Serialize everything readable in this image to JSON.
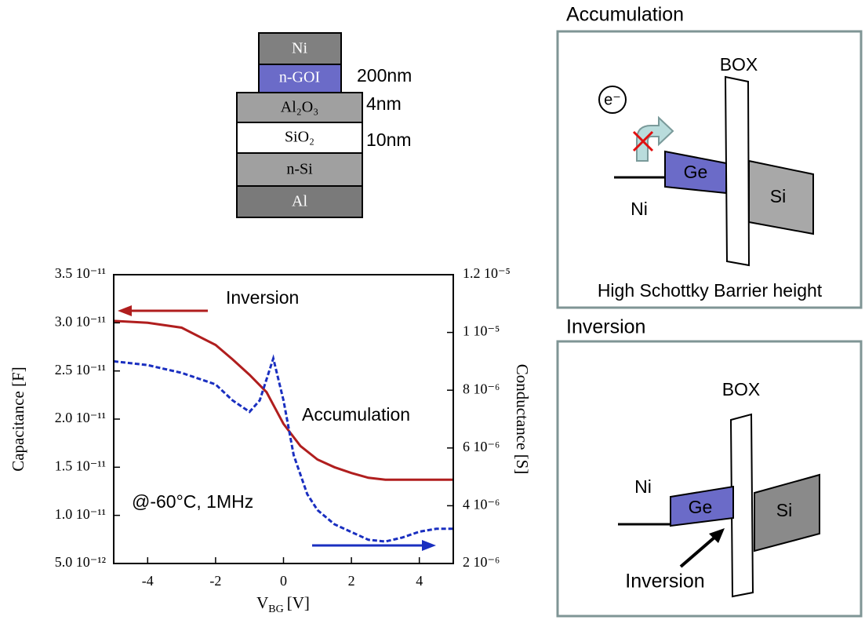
{
  "chart_data": {
    "type": "line",
    "xlabel": {
      "symbol": "V",
      "subscript": "BG",
      "unit": "[V]"
    },
    "ylabel": "Capacitance [F]",
    "y2label": "Conductance [S]",
    "xlim": [
      -5,
      5
    ],
    "xticks": [
      -4,
      -2,
      0,
      2,
      4
    ],
    "ylim": [
      5e-12,
      3.5e-11
    ],
    "yticks": [
      {
        "value": 5e-12,
        "label": "5.0 10⁻¹²"
      },
      {
        "value": 1e-11,
        "label": "1.0 10⁻¹¹"
      },
      {
        "value": 1.5e-11,
        "label": "1.5 10⁻¹¹"
      },
      {
        "value": 2e-11,
        "label": "2.0 10⁻¹¹"
      },
      {
        "value": 2.5e-11,
        "label": "2.5 10⁻¹¹"
      },
      {
        "value": 3e-11,
        "label": "3.0 10⁻¹¹"
      },
      {
        "value": 3.5e-11,
        "label": "3.5 10⁻¹¹"
      }
    ],
    "y2lim": [
      2e-06,
      1.2e-05
    ],
    "y2ticks": [
      {
        "value": 2e-06,
        "label": "2 10⁻⁶"
      },
      {
        "value": 4e-06,
        "label": "4 10⁻⁶"
      },
      {
        "value": 6e-06,
        "label": "6 10⁻⁶"
      },
      {
        "value": 8e-06,
        "label": "8 10⁻⁶"
      },
      {
        "value": 1e-05,
        "label": "1 10⁻⁵"
      },
      {
        "value": 1.2e-05,
        "label": "1.2 10⁻⁵"
      }
    ],
    "annotations": [
      "Inversion",
      "Accumulation",
      "@-60°C, 1MHz"
    ],
    "series": [
      {
        "color": "#b01e1e",
        "linestyle": "solid",
        "axis": "y",
        "x": [
          -5,
          -4,
          -3,
          -2,
          -1.5,
          -1,
          -0.5,
          0,
          0.5,
          1,
          1.5,
          2,
          2.5,
          3,
          4,
          5
        ],
        "values": [
          3.02e-11,
          3e-11,
          2.95e-11,
          2.77e-11,
          2.62e-11,
          2.46e-11,
          2.28e-11,
          1.95e-11,
          1.72e-11,
          1.58e-11,
          1.5e-11,
          1.44e-11,
          1.39e-11,
          1.37e-11,
          1.37e-11,
          1.37e-11
        ]
      },
      {
        "color": "#1a2fc0",
        "linestyle": "dashed",
        "axis": "y2",
        "x": [
          -5,
          -4,
          -3,
          -2,
          -1.5,
          -1,
          -0.7,
          -0.3,
          0,
          0.3,
          0.7,
          1,
          1.5,
          2,
          2.5,
          3,
          3.5,
          4,
          4.5,
          5
        ],
        "values": [
          9e-06,
          8.87e-06,
          8.6e-06,
          8.2e-06,
          7.65e-06,
          7.25e-06,
          7.65e-06,
          9.1e-06,
          7.65e-06,
          5.75e-06,
          4.4e-06,
          3.85e-06,
          3.36e-06,
          3.09e-06,
          2.82e-06,
          2.76e-06,
          2.9e-06,
          3.1e-06,
          3.2e-06,
          3.2e-06
        ]
      }
    ]
  },
  "stack": {
    "layers": [
      "Ni",
      "n-GOI",
      "Al₂O₃",
      "SiO₂",
      "n-Si",
      "Al"
    ],
    "thicknesses": [
      "200nm",
      "4nm",
      "10nm"
    ]
  },
  "panels": [
    {
      "title": "Accumulation",
      "box": "BOX",
      "electron": "e⁻",
      "ge": "Ge",
      "si": "Si",
      "metal": "Ni",
      "caption": "High Schottky Barrier height"
    },
    {
      "title": "Inversion",
      "box": "BOX",
      "ge": "Ge",
      "si": "Si",
      "metal": "Ni",
      "caption": "Inversion"
    }
  ]
}
